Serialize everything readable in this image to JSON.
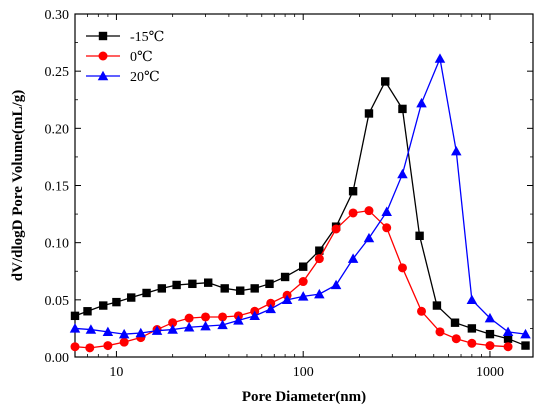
{
  "chart_data": {
    "type": "line",
    "title": "",
    "xlabel": "Pore Diameter(nm)",
    "ylabel": "dV/dlogD Pore Volume(mL/g)",
    "xscale": "log",
    "xlim": [
      6,
      1700
    ],
    "ylim": [
      0,
      0.3
    ],
    "x_ticks": [
      10,
      100,
      1000
    ],
    "x_tick_labels": [
      "10",
      "100",
      "1000"
    ],
    "y_ticks": [
      0.0,
      0.05,
      0.1,
      0.15,
      0.2,
      0.25,
      0.3
    ],
    "y_tick_labels": [
      "0.00",
      "0.05",
      "0.10",
      "0.15",
      "0.20",
      "0.25",
      "0.30"
    ],
    "grid": false,
    "legend_position": "top-left",
    "series": [
      {
        "name": "-15℃",
        "color": "#000000",
        "marker": "square",
        "points": [
          [
            6,
            0.036
          ],
          [
            7,
            0.04
          ],
          [
            8.5,
            0.045
          ],
          [
            10,
            0.048
          ],
          [
            12,
            0.052
          ],
          [
            14.5,
            0.056
          ],
          [
            17.5,
            0.06
          ],
          [
            21,
            0.063
          ],
          [
            25.5,
            0.064
          ],
          [
            31,
            0.065
          ],
          [
            38,
            0.06
          ],
          [
            46,
            0.058
          ],
          [
            55,
            0.06
          ],
          [
            66,
            0.064
          ],
          [
            80,
            0.07
          ],
          [
            100,
            0.079
          ],
          [
            122,
            0.093
          ],
          [
            150,
            0.114
          ],
          [
            185,
            0.145
          ],
          [
            225,
            0.213
          ],
          [
            275,
            0.241
          ],
          [
            340,
            0.217
          ],
          [
            420,
            0.106
          ],
          [
            520,
            0.045
          ],
          [
            650,
            0.03
          ],
          [
            800,
            0.025
          ],
          [
            1000,
            0.02
          ],
          [
            1250,
            0.016
          ],
          [
            1550,
            0.01
          ]
        ]
      },
      {
        "name": "0℃",
        "color": "#ff0000",
        "marker": "circle",
        "points": [
          [
            6,
            0.009
          ],
          [
            7.2,
            0.008
          ],
          [
            9,
            0.01
          ],
          [
            11,
            0.013
          ],
          [
            13.5,
            0.017
          ],
          [
            16.5,
            0.024
          ],
          [
            20,
            0.03
          ],
          [
            24.5,
            0.034
          ],
          [
            30,
            0.035
          ],
          [
            37,
            0.035
          ],
          [
            45,
            0.036
          ],
          [
            55,
            0.04
          ],
          [
            67,
            0.047
          ],
          [
            82,
            0.054
          ],
          [
            100,
            0.066
          ],
          [
            122,
            0.086
          ],
          [
            150,
            0.112
          ],
          [
            185,
            0.126
          ],
          [
            225,
            0.128
          ],
          [
            280,
            0.113
          ],
          [
            340,
            0.078
          ],
          [
            430,
            0.04
          ],
          [
            540,
            0.022
          ],
          [
            660,
            0.016
          ],
          [
            800,
            0.012
          ],
          [
            1000,
            0.01
          ],
          [
            1250,
            0.009
          ]
        ]
      },
      {
        "name": "20℃",
        "color": "#0000ff",
        "marker": "triangle",
        "points": [
          [
            6,
            0.025
          ],
          [
            7.3,
            0.024
          ],
          [
            9,
            0.022
          ],
          [
            11,
            0.02
          ],
          [
            13.5,
            0.021
          ],
          [
            16.5,
            0.023
          ],
          [
            20,
            0.024
          ],
          [
            24.5,
            0.026
          ],
          [
            30,
            0.027
          ],
          [
            37,
            0.028
          ],
          [
            45,
            0.032
          ],
          [
            55,
            0.036
          ],
          [
            67,
            0.042
          ],
          [
            82,
            0.05
          ],
          [
            100,
            0.053
          ],
          [
            122,
            0.055
          ],
          [
            150,
            0.063
          ],
          [
            185,
            0.086
          ],
          [
            225,
            0.104
          ],
          [
            280,
            0.127
          ],
          [
            340,
            0.16
          ],
          [
            430,
            0.222
          ],
          [
            540,
            0.261
          ],
          [
            660,
            0.18
          ],
          [
            800,
            0.05
          ],
          [
            1000,
            0.034
          ],
          [
            1250,
            0.022
          ],
          [
            1550,
            0.02
          ]
        ]
      }
    ]
  }
}
